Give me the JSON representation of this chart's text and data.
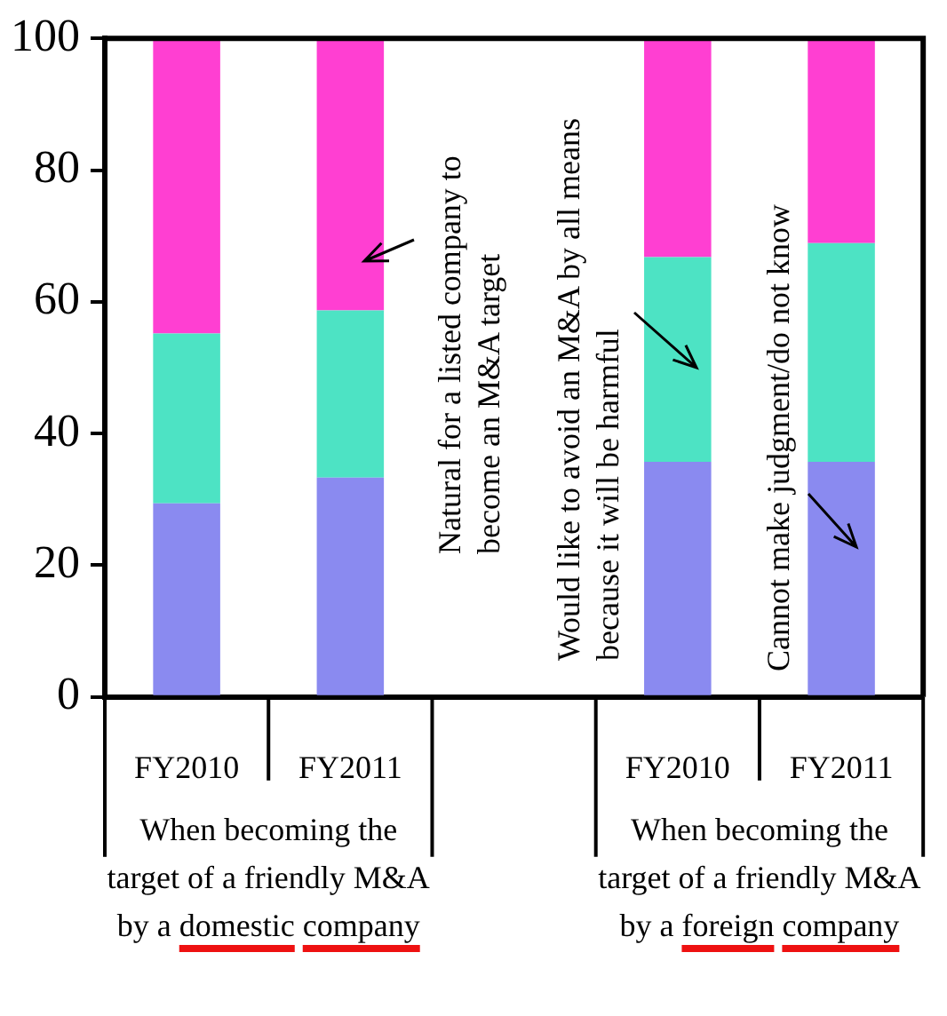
{
  "chart_data": {
    "type": "bar",
    "stacked": true,
    "legend": false,
    "grid": false,
    "categories": [
      "FY2010",
      "FY2011",
      null,
      "FY2010",
      "FY2011"
    ],
    "ylim": [
      0,
      100
    ],
    "yticks": [
      0,
      20,
      40,
      60,
      80,
      100
    ],
    "series": [
      {
        "name": "Cannot make judgment/do not know",
        "color": "#8a8af0",
        "values": [
          29.4,
          33.3,
          null,
          35.7,
          35.7
        ]
      },
      {
        "name": "Would like to avoid an M&A by all means because it will be harmful",
        "color": "#4de3c4",
        "values": [
          25.8,
          25.4,
          null,
          31.1,
          33.2
        ]
      },
      {
        "name": "Natural for a listed company to become an M&A target",
        "color": "#ff3fd2",
        "values": [
          44.8,
          41.3,
          null,
          33.2,
          31.1
        ]
      }
    ],
    "annotations": [
      "When becoming the target of a friendly M&A by a domestic company",
      "When becoming the target of a friendly M&A by a foreign company"
    ]
  }
}
